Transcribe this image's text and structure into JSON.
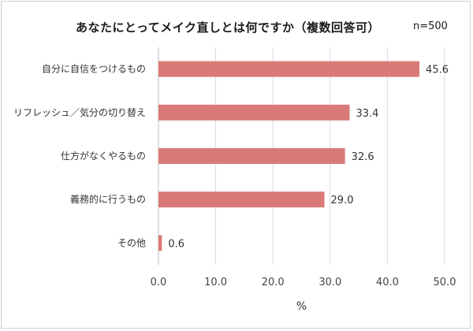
{
  "chart_data": {
    "type": "bar",
    "orientation": "horizontal",
    "title": "あなたにとってメイク直しとは何ですか（複数回答可）",
    "sample_label": "n=500",
    "categories": [
      "自分に自信をつけるもの",
      "リフレッシュ／気分の切り替え",
      "仕方がなくやるもの",
      "義務的に行うもの",
      "その他"
    ],
    "values": [
      45.6,
      33.4,
      32.6,
      29.0,
      0.6
    ],
    "value_labels": [
      "45.6",
      "33.4",
      "32.6",
      "29.0",
      "0.6"
    ],
    "xlabel": "%",
    "xlim": [
      0,
      50
    ],
    "xticks": [
      0,
      10,
      20,
      30,
      40,
      50
    ],
    "xtick_labels": [
      "0.0",
      "10.0",
      "20.0",
      "30.0",
      "40.0",
      "50.0"
    ],
    "grid": true,
    "bar_color": "#d97a78",
    "grid_color": "#d9d9d9"
  }
}
